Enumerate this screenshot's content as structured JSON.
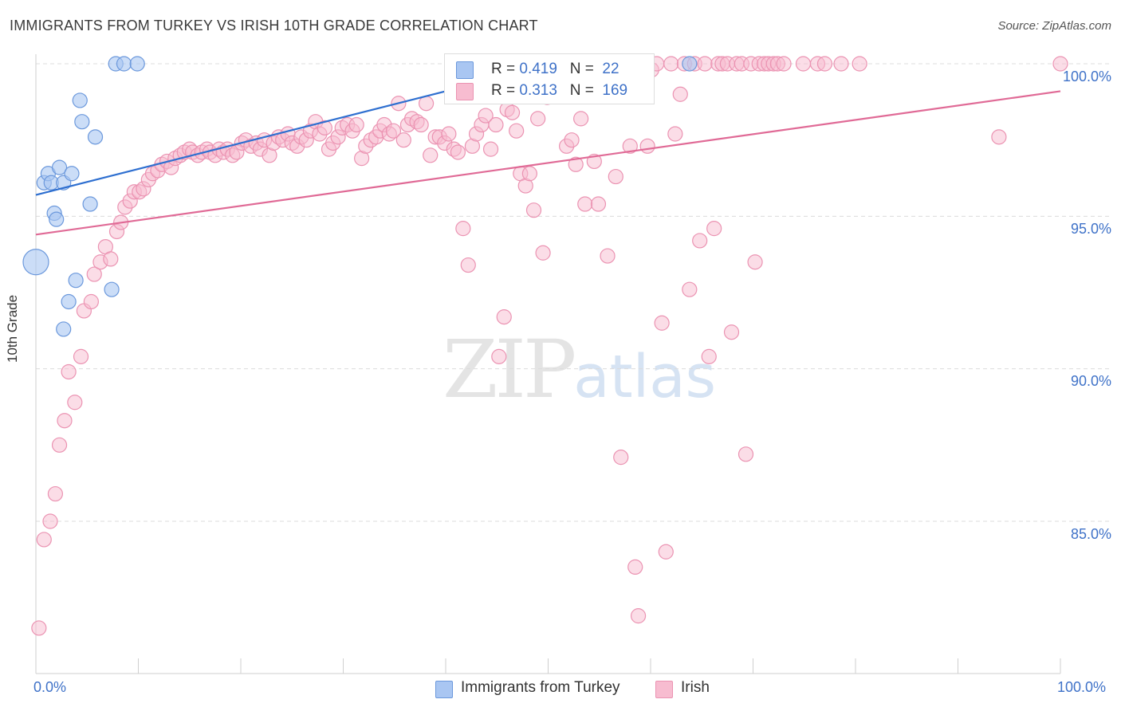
{
  "title": "IMMIGRANTS FROM TURKEY VS IRISH 10TH GRADE CORRELATION CHART",
  "source": "Source: ZipAtlas.com",
  "watermark": {
    "zip": "ZIP",
    "atlas": "atlas"
  },
  "colors": {
    "turkey_fill": "#a9c6f2",
    "turkey_stroke": "#6b98dc",
    "turkey_line": "#2e6fd0",
    "irish_fill": "#f7bcd0",
    "irish_stroke": "#eb93b2",
    "irish_line": "#e06a96",
    "tick_text": "#3f72c8",
    "grid": "#dcdcdc"
  },
  "legend": {
    "turkey": {
      "r_label": "R = ",
      "r_value": "0.419",
      "n_label": "N = ",
      "n_value": "22"
    },
    "irish": {
      "r_label": "R = ",
      "r_value": "0.313",
      "n_label": "N = ",
      "n_value": "169"
    }
  },
  "bottom_legend": {
    "turkey": "Immigrants from Turkey",
    "irish": "Irish"
  },
  "chart_data": {
    "type": "scatter",
    "title": "IMMIGRANTS FROM TURKEY VS IRISH 10TH GRADE CORRELATION CHART",
    "xlabel": "",
    "ylabel": "10th Grade",
    "xlim": [
      0,
      100
    ],
    "ylim": [
      80.5,
      100.5
    ],
    "x_tick_labels": [
      "0.0%",
      "100.0%"
    ],
    "y_ticks": [
      85,
      90,
      95,
      100
    ],
    "y_tick_labels": [
      "85.0%",
      "90.0%",
      "95.0%",
      "100.0%"
    ],
    "grid": true,
    "legend_position": "top-center",
    "series": [
      {
        "name": "Immigrants from Turkey",
        "r": 0.419,
        "n": 22,
        "trend": {
          "x": [
            0,
            40
          ],
          "y": [
            95.7,
            99.1
          ]
        },
        "points": [
          [
            0.0,
            93.5,
            16
          ],
          [
            0.8,
            96.1,
            9
          ],
          [
            1.2,
            96.4,
            9
          ],
          [
            1.5,
            96.1,
            9
          ],
          [
            1.8,
            95.1,
            9
          ],
          [
            2.0,
            94.9,
            9
          ],
          [
            2.3,
            96.6,
            9
          ],
          [
            2.7,
            96.1,
            9
          ],
          [
            2.7,
            91.3,
            9
          ],
          [
            3.2,
            92.2,
            9
          ],
          [
            3.5,
            96.4,
            9
          ],
          [
            3.9,
            92.9,
            9
          ],
          [
            4.3,
            98.8,
            9
          ],
          [
            4.5,
            98.1,
            9
          ],
          [
            5.3,
            95.4,
            9
          ],
          [
            5.8,
            97.6,
            9
          ],
          [
            7.4,
            92.6,
            9
          ],
          [
            7.8,
            100.0,
            9
          ],
          [
            8.6,
            100.0,
            9
          ],
          [
            9.9,
            100.0,
            9
          ],
          [
            43.1,
            100.0,
            9
          ],
          [
            63.8,
            100.0,
            9
          ]
        ]
      },
      {
        "name": "Irish",
        "r": 0.313,
        "n": 169,
        "trend": {
          "x": [
            0,
            100
          ],
          "y": [
            94.4,
            99.1
          ]
        },
        "points": [
          [
            0.3,
            81.5
          ],
          [
            0.8,
            84.4
          ],
          [
            1.4,
            85.0
          ],
          [
            1.9,
            85.9
          ],
          [
            2.3,
            87.5
          ],
          [
            2.8,
            88.3
          ],
          [
            3.2,
            89.9
          ],
          [
            3.8,
            88.9
          ],
          [
            4.4,
            90.4
          ],
          [
            4.7,
            91.9
          ],
          [
            5.4,
            92.2
          ],
          [
            5.7,
            93.1
          ],
          [
            6.3,
            93.5
          ],
          [
            6.8,
            94.0
          ],
          [
            7.3,
            93.6
          ],
          [
            7.9,
            94.5
          ],
          [
            8.3,
            94.8
          ],
          [
            8.7,
            95.3
          ],
          [
            9.2,
            95.5
          ],
          [
            9.6,
            95.8
          ],
          [
            10.1,
            95.8
          ],
          [
            10.5,
            95.9
          ],
          [
            11.0,
            96.2
          ],
          [
            11.4,
            96.4
          ],
          [
            11.9,
            96.5
          ],
          [
            12.3,
            96.7
          ],
          [
            12.8,
            96.8
          ],
          [
            13.2,
            96.6
          ],
          [
            13.6,
            96.9
          ],
          [
            14.1,
            97.0
          ],
          [
            14.5,
            97.1
          ],
          [
            15.0,
            97.2
          ],
          [
            15.3,
            97.1
          ],
          [
            15.8,
            97.0
          ],
          [
            16.2,
            97.1
          ],
          [
            16.7,
            97.2
          ],
          [
            17.0,
            97.1
          ],
          [
            17.5,
            97.0
          ],
          [
            17.9,
            97.2
          ],
          [
            18.3,
            97.1
          ],
          [
            18.7,
            97.2
          ],
          [
            19.2,
            97.0
          ],
          [
            19.6,
            97.1
          ],
          [
            20.1,
            97.4
          ],
          [
            20.5,
            97.5
          ],
          [
            21.0,
            97.3
          ],
          [
            21.5,
            97.4
          ],
          [
            21.9,
            97.2
          ],
          [
            22.3,
            97.5
          ],
          [
            22.8,
            97.0
          ],
          [
            23.2,
            97.4
          ],
          [
            23.7,
            97.6
          ],
          [
            24.1,
            97.5
          ],
          [
            24.6,
            97.7
          ],
          [
            25.0,
            97.4
          ],
          [
            25.5,
            97.3
          ],
          [
            25.9,
            97.6
          ],
          [
            26.4,
            97.5
          ],
          [
            26.8,
            97.8
          ],
          [
            27.3,
            98.1
          ],
          [
            27.7,
            97.7
          ],
          [
            28.2,
            97.9
          ],
          [
            28.6,
            97.2
          ],
          [
            29.0,
            97.4
          ],
          [
            29.5,
            97.6
          ],
          [
            29.9,
            97.9
          ],
          [
            30.4,
            98.0
          ],
          [
            30.9,
            97.8
          ],
          [
            31.3,
            98.0
          ],
          [
            31.8,
            96.9
          ],
          [
            32.2,
            97.3
          ],
          [
            32.7,
            97.5
          ],
          [
            33.2,
            97.6
          ],
          [
            33.6,
            97.8
          ],
          [
            34.0,
            98.0
          ],
          [
            34.5,
            97.7
          ],
          [
            34.9,
            97.8
          ],
          [
            35.4,
            98.7
          ],
          [
            35.9,
            97.5
          ],
          [
            36.3,
            98.0
          ],
          [
            36.7,
            98.2
          ],
          [
            37.2,
            98.1
          ],
          [
            37.6,
            98.0
          ],
          [
            38.1,
            98.7
          ],
          [
            38.5,
            97.0
          ],
          [
            39.0,
            97.6
          ],
          [
            39.4,
            97.6
          ],
          [
            39.9,
            97.4
          ],
          [
            40.3,
            97.7
          ],
          [
            40.8,
            97.2
          ],
          [
            41.2,
            97.1
          ],
          [
            41.7,
            94.6
          ],
          [
            42.2,
            93.4
          ],
          [
            42.6,
            97.3
          ],
          [
            43.0,
            97.7
          ],
          [
            43.5,
            98.0
          ],
          [
            43.9,
            98.3
          ],
          [
            44.4,
            97.2
          ],
          [
            44.9,
            98.0
          ],
          [
            45.2,
            90.4
          ],
          [
            45.7,
            91.7
          ],
          [
            46.0,
            98.5
          ],
          [
            46.5,
            98.4
          ],
          [
            46.9,
            97.8
          ],
          [
            47.3,
            96.4
          ],
          [
            47.8,
            96.0
          ],
          [
            48.2,
            96.4
          ],
          [
            48.6,
            95.2
          ],
          [
            49.0,
            98.2
          ],
          [
            49.5,
            93.8
          ],
          [
            49.9,
            98.9
          ],
          [
            50.4,
            100.0
          ],
          [
            50.9,
            99.0
          ],
          [
            51.4,
            100.0
          ],
          [
            51.8,
            97.3
          ],
          [
            52.3,
            97.5
          ],
          [
            52.7,
            96.7
          ],
          [
            53.2,
            98.2
          ],
          [
            53.6,
            95.4
          ],
          [
            54.1,
            100.0
          ],
          [
            54.5,
            96.8
          ],
          [
            54.9,
            95.4
          ],
          [
            55.3,
            99.6
          ],
          [
            55.8,
            93.7
          ],
          [
            56.2,
            100.0
          ],
          [
            56.6,
            96.3
          ],
          [
            57.1,
            87.1
          ],
          [
            57.5,
            100.0
          ],
          [
            58.0,
            97.3
          ],
          [
            58.5,
            83.5
          ],
          [
            58.8,
            81.9
          ],
          [
            59.2,
            100.0
          ],
          [
            59.7,
            97.3
          ],
          [
            60.1,
            99.8
          ],
          [
            60.6,
            100.0
          ],
          [
            61.1,
            91.5
          ],
          [
            61.5,
            84.0
          ],
          [
            62.0,
            100.0
          ],
          [
            62.4,
            97.7
          ],
          [
            62.9,
            99.0
          ],
          [
            63.3,
            100.0
          ],
          [
            63.8,
            92.6
          ],
          [
            64.3,
            100.0
          ],
          [
            64.8,
            94.2
          ],
          [
            65.3,
            100.0
          ],
          [
            65.7,
            90.4
          ],
          [
            66.2,
            94.6
          ],
          [
            66.6,
            100.0
          ],
          [
            67.0,
            100.0
          ],
          [
            67.5,
            100.0
          ],
          [
            67.9,
            91.2
          ],
          [
            68.4,
            100.0
          ],
          [
            68.9,
            100.0
          ],
          [
            69.3,
            87.2
          ],
          [
            69.8,
            100.0
          ],
          [
            70.2,
            93.5
          ],
          [
            70.6,
            100.0
          ],
          [
            71.1,
            100.0
          ],
          [
            71.5,
            100.0
          ],
          [
            72.0,
            100.0
          ],
          [
            72.4,
            100.0
          ],
          [
            73.0,
            100.0
          ],
          [
            74.9,
            100.0
          ],
          [
            76.3,
            100.0
          ],
          [
            77.0,
            100.0
          ],
          [
            78.6,
            100.0
          ],
          [
            80.4,
            100.0
          ],
          [
            94.0,
            97.6
          ],
          [
            100.0,
            100.0
          ]
        ]
      }
    ]
  }
}
